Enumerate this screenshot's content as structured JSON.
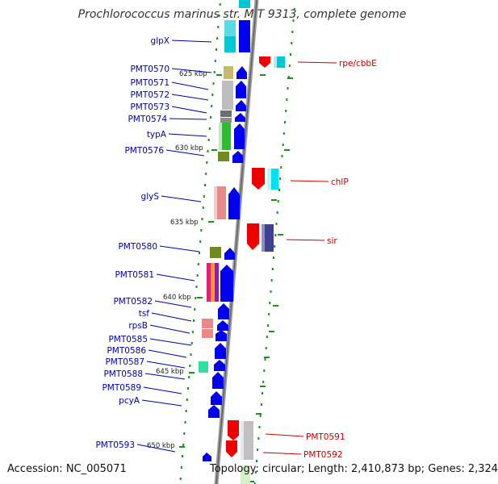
{
  "title": "Prochlorococcus marinus str. MIT 9313, complete genome",
  "footer": {
    "accession": "Accession: NC_005071",
    "topology": "Topology: circular; Length: 2,410,873 bp; Genes: 2,324"
  },
  "kbp_marks": [
    {
      "label": "625 kbp"
    },
    {
      "label": "630 kbp"
    },
    {
      "label": "635 kbp"
    },
    {
      "label": "640 kbp"
    },
    {
      "label": "645 kbp"
    },
    {
      "label": "650 kbp"
    }
  ],
  "left_genes": [
    {
      "name": "glpX"
    },
    {
      "name": "PMT0570"
    },
    {
      "name": "PMT0571"
    },
    {
      "name": "PMT0572"
    },
    {
      "name": "PMT0573"
    },
    {
      "name": "PMT0574"
    },
    {
      "name": "typA"
    },
    {
      "name": "PMT0576"
    },
    {
      "name": "glyS"
    },
    {
      "name": "PMT0580"
    },
    {
      "name": "PMT0581"
    },
    {
      "name": "PMT0582"
    },
    {
      "name": "tsf"
    },
    {
      "name": "rpsB"
    },
    {
      "name": "PMT0585"
    },
    {
      "name": "PMT0586"
    },
    {
      "name": "PMT0587"
    },
    {
      "name": "PMT0588"
    },
    {
      "name": "PMT0589"
    },
    {
      "name": "pcyA"
    },
    {
      "name": "PMT0593"
    }
  ],
  "right_genes": [
    {
      "name": "rpe/cbbE"
    },
    {
      "name": "chlP"
    },
    {
      "name": "sir"
    },
    {
      "name": "PMT0591"
    },
    {
      "name": "PMT0592"
    }
  ],
  "colors": {
    "left_label": "#0000aa",
    "right_label": "#cc0000",
    "forward_gene": "#0000ee",
    "reverse_gene": "#ee0000",
    "dots": "#228b22",
    "backbone": "#8c8c8c"
  }
}
